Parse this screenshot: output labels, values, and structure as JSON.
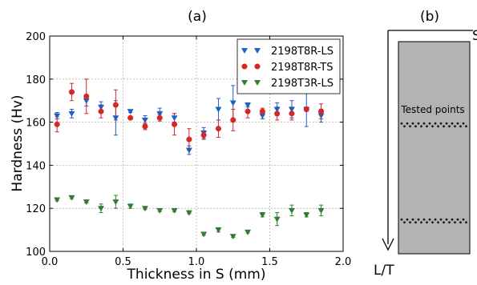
{
  "chart_data": [
    {
      "panel_label": "(a)",
      "type": "scatter",
      "xlabel": "Thickness in S (mm)",
      "ylabel": "Hardness (Hv)",
      "xlim": [
        0.0,
        2.0
      ],
      "ylim": [
        100,
        200
      ],
      "xticks": [
        "0.0",
        "0.5",
        "1.0",
        "1.5",
        "2.0"
      ],
      "yticks": [
        "100",
        "120",
        "140",
        "160",
        "180",
        "200"
      ],
      "grid": true,
      "legend_position": "top-right",
      "series": [
        {
          "name": "2198T8R-LS",
          "color": "#1f5fbf",
          "marker": "triangle-down",
          "x": [
            0.05,
            0.15,
            0.25,
            0.35,
            0.45,
            0.55,
            0.65,
            0.75,
            0.85,
            0.95,
            1.05,
            1.15,
            1.25,
            1.35,
            1.45,
            1.55,
            1.65,
            1.75,
            1.85
          ],
          "y": [
            163,
            164,
            170,
            167,
            162,
            165,
            161,
            164,
            162,
            147,
            155,
            166,
            169,
            168,
            163,
            166,
            166,
            166,
            163
          ],
          "err": [
            1.5,
            2.0,
            2.5,
            2.5,
            8.0,
            0.5,
            2.0,
            2.5,
            2.0,
            2.0,
            2.5,
            5.0,
            8.0,
            1.0,
            1.5,
            3.0,
            4.0,
            8.0,
            3.0
          ]
        },
        {
          "name": "2198T8R-TS",
          "color": "#d62728",
          "marker": "circle",
          "x": [
            0.05,
            0.15,
            0.25,
            0.35,
            0.45,
            0.55,
            0.65,
            0.75,
            0.85,
            0.95,
            1.05,
            1.15,
            1.25,
            1.35,
            1.45,
            1.55,
            1.65,
            1.75,
            1.85
          ],
          "y": [
            159,
            174,
            172,
            165,
            168,
            162,
            158,
            162,
            159,
            152,
            154,
            157,
            161,
            165,
            165,
            164,
            164,
            166,
            165
          ],
          "err": [
            3.5,
            4.0,
            8.0,
            3.0,
            7.0,
            0.5,
            1.5,
            1.5,
            5.0,
            5.0,
            2.0,
            4.0,
            5.0,
            3.0,
            1.5,
            3.0,
            3.0,
            1.0,
            3.5
          ]
        },
        {
          "name": "2198T3R-LS",
          "color": "#2e7d32",
          "marker": "triangle-down",
          "x": [
            0.05,
            0.15,
            0.25,
            0.35,
            0.45,
            0.55,
            0.65,
            0.75,
            0.85,
            0.95,
            1.05,
            1.15,
            1.25,
            1.35,
            1.45,
            1.55,
            1.65,
            1.75,
            1.85
          ],
          "y": [
            124,
            125,
            123,
            120,
            123,
            121,
            120,
            119,
            119,
            118,
            108,
            110,
            107,
            109,
            117,
            115,
            119,
            117,
            119
          ],
          "err": [
            0.5,
            0.5,
            0.5,
            2.0,
            3.0,
            1.0,
            0.5,
            0.5,
            0.5,
            0.5,
            0.5,
            1.0,
            0.5,
            0.5,
            1.0,
            3.0,
            2.5,
            1.0,
            2.5
          ]
        }
      ]
    },
    {
      "panel_label": "(b)",
      "type": "diagram",
      "axis_right_label": "S",
      "axis_down_label": "L/T",
      "annotation": "Tested points",
      "strip_color": "#b3b3b3",
      "point_color": "#1a1a1a"
    }
  ]
}
